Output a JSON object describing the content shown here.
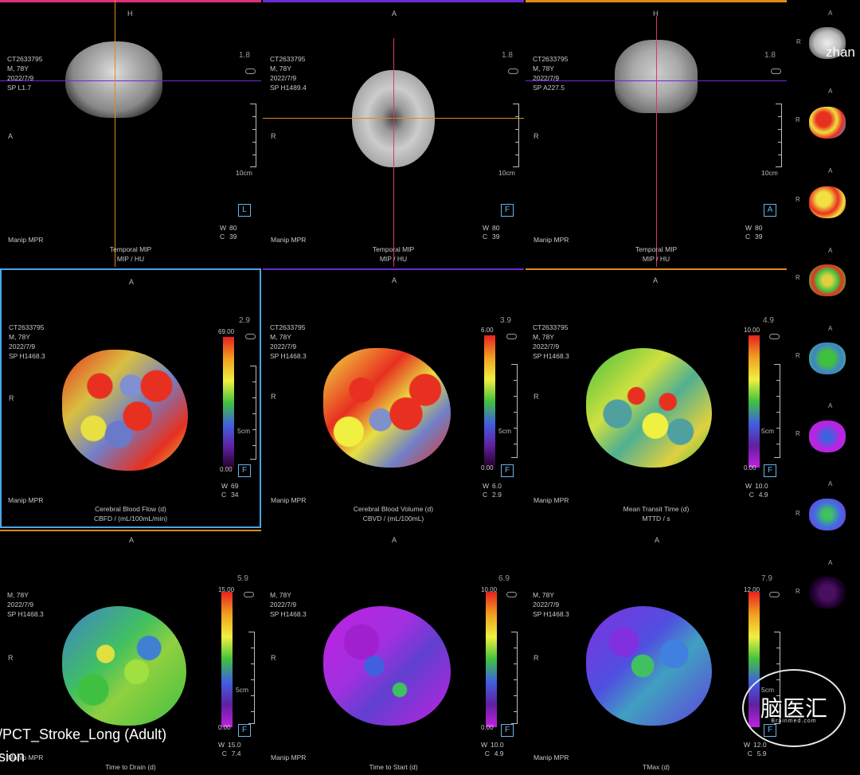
{
  "top_row": [
    {
      "orient_top": "H",
      "orient_left": "A",
      "info": [
        "CT2633795",
        "M, 78Y",
        "2022/7/9",
        "SP L1.7"
      ],
      "zoom": "1.8",
      "scale_label": "10cm",
      "orient_box": "L",
      "window": {
        "w": "80",
        "c": "39"
      },
      "manip": "Manip MPR",
      "footer": [
        "Temporal MIP",
        "MIP / HU"
      ]
    },
    {
      "orient_top": "A",
      "orient_left": "R",
      "info": [
        "CT2633795",
        "M, 78Y",
        "2022/7/9",
        "SP H1489.4"
      ],
      "zoom": "1.8",
      "scale_label": "10cm",
      "orient_box": "F",
      "window": {
        "w": "80",
        "c": "39"
      },
      "manip": "Manip MPR",
      "footer": [
        "Temporal MIP",
        "MIP / HU"
      ]
    },
    {
      "orient_top": "H",
      "orient_left": "R",
      "info": [
        "CT2633795",
        "M, 78Y",
        "2022/7/9",
        "SP A227.5"
      ],
      "zoom": "1.8",
      "scale_label": "10cm",
      "orient_box": "A",
      "window": {
        "w": "80",
        "c": "39"
      },
      "manip": "Manip MPR",
      "footer": [
        "Temporal MIP",
        "MIP / HU"
      ]
    }
  ],
  "mid_row": [
    {
      "orient_top": "A",
      "orient_left": "R",
      "info": [
        "CT2633795",
        "M, 78Y",
        "2022/7/9",
        "SP H1468.3"
      ],
      "zoom": "2.9",
      "cb_max": "69.00",
      "cb_min": "0.00",
      "scale_label": "5cm",
      "orient_box": "F",
      "window": {
        "w": "69",
        "c": "34"
      },
      "manip": "Manip MPR",
      "footer": [
        "Cerebral Blood Flow (d)",
        "CBFD / (mL/100mL/min)"
      ]
    },
    {
      "orient_top": "A",
      "orient_left": "R",
      "info": [
        "CT2633795",
        "M, 78Y",
        "2022/7/9",
        "SP H1468.3"
      ],
      "zoom": "3.9",
      "cb_max": "6.00",
      "cb_min": "0.00",
      "scale_label": "5cm",
      "orient_box": "F",
      "window": {
        "w": "6.0",
        "c": "2.9"
      },
      "manip": "Manip MPR",
      "footer": [
        "Cerebral Blood Volume (d)",
        "CBVD / (mL/100mL)"
      ]
    },
    {
      "orient_top": "A",
      "orient_left": "R",
      "info": [
        "CT2633795",
        "M, 78Y",
        "2022/7/9",
        "SP H1468.3"
      ],
      "zoom": "4.9",
      "cb_max": "10.00",
      "cb_min": "0.00",
      "scale_label": "5cm",
      "orient_box": "F",
      "window": {
        "w": "10.0",
        "c": "4.9"
      },
      "manip": "Manip MPR",
      "footer": [
        "Mean Transit Time (d)",
        "MTTD / s"
      ]
    }
  ],
  "bot_row": [
    {
      "orient_top": "A",
      "orient_left": "R",
      "info": [
        "M, 78Y",
        "2022/7/9",
        "SP H1468.3"
      ],
      "zoom": "5.9",
      "cb_max": "15.00",
      "cb_min": "0.00",
      "scale_label": "5cm",
      "orient_box": "F",
      "window": {
        "w": "15.0",
        "c": "7.4"
      },
      "manip": "Manip MPR",
      "footer": [
        "Time to Drain (d)"
      ]
    },
    {
      "orient_top": "A",
      "orient_left": "R",
      "info": [
        "M, 78Y",
        "2022/7/9",
        "SP H1468.3"
      ],
      "zoom": "6.9",
      "cb_max": "10.00",
      "cb_min": "0.00",
      "scale_label": "",
      "orient_box": "F",
      "window": {
        "w": "10.0",
        "c": "4.9"
      },
      "manip": "Manip MPR",
      "footer": [
        "Time to Start (d)"
      ]
    },
    {
      "orient_top": "A",
      "orient_left": "R",
      "info": [
        "M, 78Y",
        "2022/7/9",
        "SP H1468.3"
      ],
      "zoom": "7.9",
      "cb_max": "12.00",
      "cb_min": "",
      "scale_label": "5cm",
      "orient_box": "F",
      "window": {
        "w": "12.0",
        "c": "5.9"
      },
      "manip": "Manip MPR",
      "footer": [
        "TMax (d)"
      ]
    }
  ],
  "thumbnails": {
    "orient_top": "A",
    "orient_left": "R",
    "items": [
      {
        "kind": "gray"
      },
      {
        "kind": "cbf"
      },
      {
        "kind": "cbv"
      },
      {
        "kind": "mtt"
      },
      {
        "kind": "ttd"
      },
      {
        "kind": "tts"
      },
      {
        "kind": "tmax"
      },
      {
        "kind": "purple"
      }
    ]
  },
  "overlays": {
    "protocol_text": "/PCT_Stroke_Long (Adult)",
    "sion_text": "sion",
    "zhan_text": "zhan",
    "watermark": "脑医汇",
    "watermark_sub": "Brainmed.com"
  },
  "colors": {
    "rule_magenta": "#e0307a",
    "rule_purple": "#6a2bd6",
    "rule_orange": "#e08a1c",
    "active_border": "#4aa6e8",
    "accent_blue": "#6ab4e8"
  }
}
